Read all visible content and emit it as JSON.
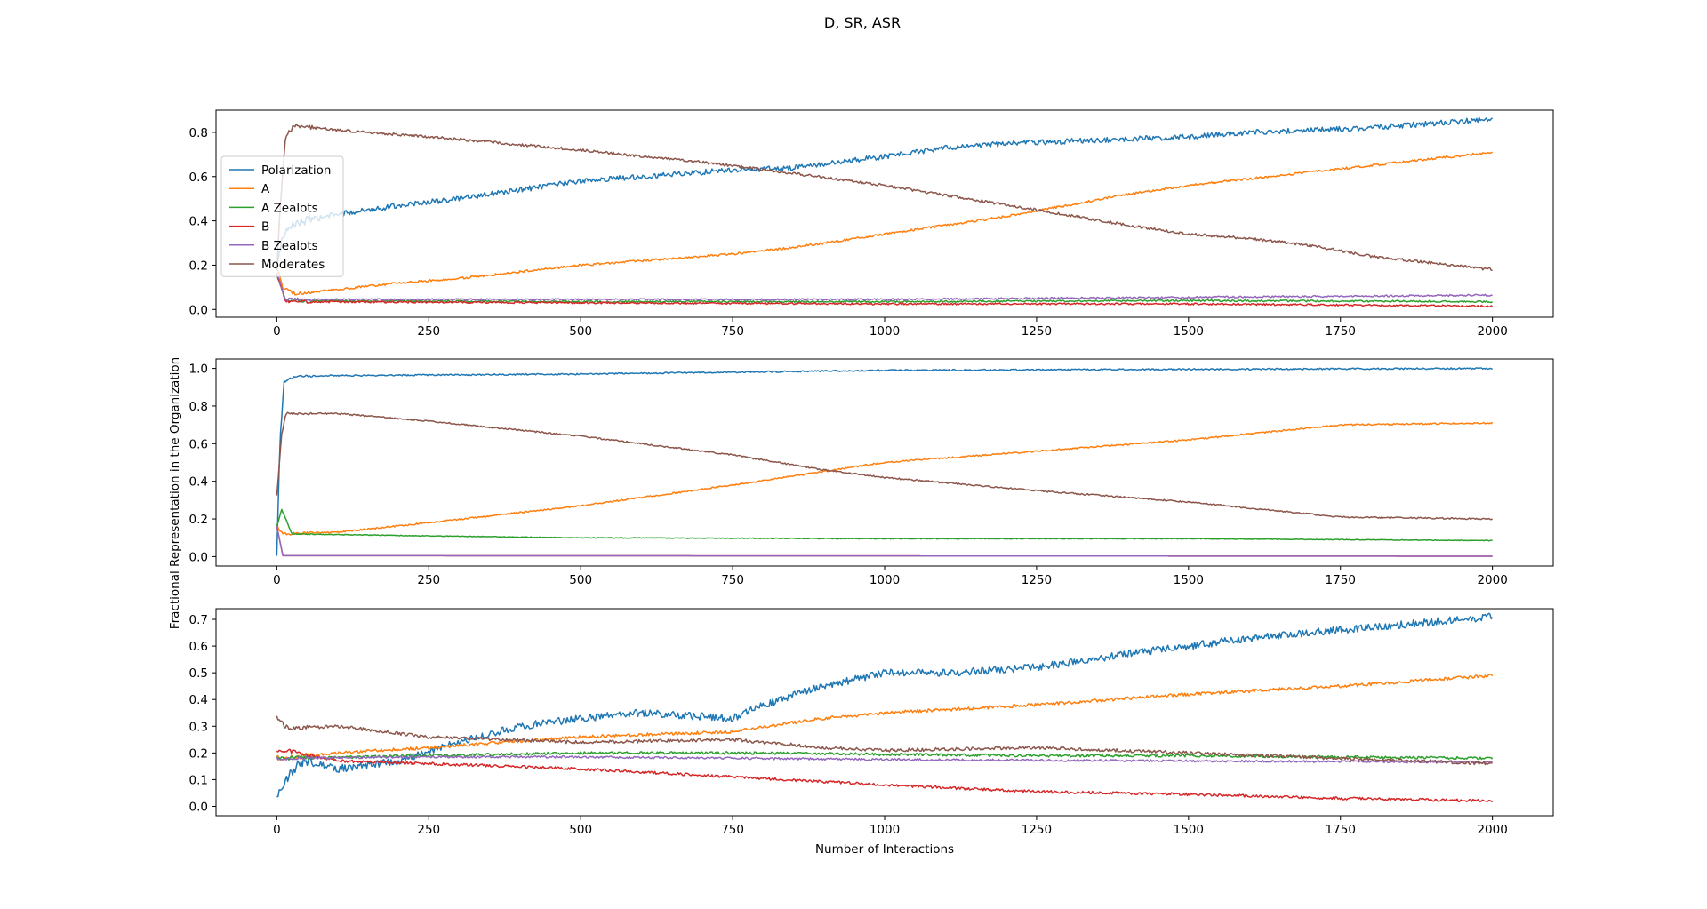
{
  "figure": {
    "title": "D, SR, ASR",
    "xlabel": "Number of Interactions",
    "ylabel": "Fractional Representation in the Organization"
  },
  "colors": {
    "Polarization": "#1f77b4",
    "A": "#ff7f0e",
    "A Zealots": "#2ca02c",
    "B": "#d62728",
    "B Zealots": "#9467bd",
    "Moderates": "#8c564b"
  },
  "chart_data": [
    {
      "type": "line",
      "xlim": [
        -100,
        2100
      ],
      "ylim": [
        -0.035,
        0.9
      ],
      "xticks": [
        0,
        250,
        500,
        750,
        1000,
        1250,
        1500,
        1750,
        2000
      ],
      "yticks": [
        0.0,
        0.2,
        0.4,
        0.6,
        0.8
      ],
      "ytick_labels": [
        "0.0",
        "0.2",
        "0.4",
        "0.6",
        "0.8"
      ],
      "legend": {
        "placement": "upper-left",
        "entries": [
          "Polarization",
          "A",
          "A Zealots",
          "B",
          "B Zealots",
          "Moderates"
        ]
      },
      "series": [
        {
          "name": "Polarization",
          "noise": 0.012,
          "points": [
            [
              0,
              0.2
            ],
            [
              10,
              0.33
            ],
            [
              30,
              0.39
            ],
            [
              100,
              0.43
            ],
            [
              200,
              0.47
            ],
            [
              300,
              0.5
            ],
            [
              400,
              0.54
            ],
            [
              500,
              0.58
            ],
            [
              600,
              0.6
            ],
            [
              750,
              0.63
            ],
            [
              850,
              0.64
            ],
            [
              1000,
              0.69
            ],
            [
              1100,
              0.73
            ],
            [
              1200,
              0.75
            ],
            [
              1300,
              0.76
            ],
            [
              1400,
              0.77
            ],
            [
              1500,
              0.78
            ],
            [
              1600,
              0.8
            ],
            [
              1700,
              0.81
            ],
            [
              1800,
              0.82
            ],
            [
              1900,
              0.84
            ],
            [
              2000,
              0.86
            ]
          ]
        },
        {
          "name": "A",
          "noise": 0.005,
          "points": [
            [
              0,
              0.19
            ],
            [
              10,
              0.1
            ],
            [
              30,
              0.07
            ],
            [
              100,
              0.09
            ],
            [
              200,
              0.12
            ],
            [
              300,
              0.14
            ],
            [
              400,
              0.17
            ],
            [
              500,
              0.2
            ],
            [
              600,
              0.22
            ],
            [
              750,
              0.25
            ],
            [
              850,
              0.28
            ],
            [
              1000,
              0.34
            ],
            [
              1100,
              0.38
            ],
            [
              1200,
              0.42
            ],
            [
              1300,
              0.47
            ],
            [
              1400,
              0.52
            ],
            [
              1500,
              0.56
            ],
            [
              1600,
              0.59
            ],
            [
              1700,
              0.62
            ],
            [
              1800,
              0.65
            ],
            [
              1900,
              0.68
            ],
            [
              2000,
              0.71
            ]
          ]
        },
        {
          "name": "A Zealots",
          "noise": 0.004,
          "points": [
            [
              0,
              0.16
            ],
            [
              15,
              0.04
            ],
            [
              500,
              0.035
            ],
            [
              1000,
              0.035
            ],
            [
              1500,
              0.04
            ],
            [
              2000,
              0.035
            ]
          ]
        },
        {
          "name": "B",
          "noise": 0.004,
          "points": [
            [
              0,
              0.16
            ],
            [
              15,
              0.035
            ],
            [
              500,
              0.03
            ],
            [
              1000,
              0.025
            ],
            [
              1500,
              0.025
            ],
            [
              2000,
              0.015
            ]
          ]
        },
        {
          "name": "B Zealots",
          "noise": 0.004,
          "points": [
            [
              0,
              0.16
            ],
            [
              15,
              0.045
            ],
            [
              500,
              0.045
            ],
            [
              1000,
              0.045
            ],
            [
              1500,
              0.055
            ],
            [
              2000,
              0.065
            ]
          ]
        },
        {
          "name": "Moderates",
          "noise": 0.006,
          "points": [
            [
              0,
              0.17
            ],
            [
              5,
              0.45
            ],
            [
              15,
              0.79
            ],
            [
              30,
              0.83
            ],
            [
              100,
              0.81
            ],
            [
              250,
              0.78
            ],
            [
              500,
              0.72
            ],
            [
              750,
              0.65
            ],
            [
              1000,
              0.56
            ],
            [
              1250,
              0.45
            ],
            [
              1400,
              0.38
            ],
            [
              1500,
              0.34
            ],
            [
              1600,
              0.32
            ],
            [
              1700,
              0.29
            ],
            [
              1800,
              0.24
            ],
            [
              1900,
              0.21
            ],
            [
              2000,
              0.18
            ]
          ]
        }
      ]
    },
    {
      "type": "line",
      "xlim": [
        -100,
        2100
      ],
      "ylim": [
        -0.05,
        1.05
      ],
      "xticks": [
        0,
        250,
        500,
        750,
        1000,
        1250,
        1500,
        1750,
        2000
      ],
      "yticks": [
        0.0,
        0.2,
        0.4,
        0.6,
        0.8,
        1.0
      ],
      "ytick_labels": [
        "0.0",
        "0.2",
        "0.4",
        "0.6",
        "0.8",
        "1.0"
      ],
      "series": [
        {
          "name": "Polarization",
          "noise": 0.004,
          "points": [
            [
              0,
              0.0
            ],
            [
              5,
              0.6
            ],
            [
              12,
              0.93
            ],
            [
              30,
              0.96
            ],
            [
              250,
              0.965
            ],
            [
              500,
              0.97
            ],
            [
              750,
              0.98
            ],
            [
              1000,
              0.99
            ],
            [
              1500,
              0.995
            ],
            [
              2000,
              1.0
            ]
          ]
        },
        {
          "name": "A",
          "noise": 0.004,
          "points": [
            [
              0,
              0.16
            ],
            [
              10,
              0.12
            ],
            [
              100,
              0.13
            ],
            [
              250,
              0.18
            ],
            [
              500,
              0.27
            ],
            [
              750,
              0.38
            ],
            [
              1000,
              0.5
            ],
            [
              1250,
              0.56
            ],
            [
              1500,
              0.62
            ],
            [
              1750,
              0.7
            ],
            [
              2000,
              0.71
            ]
          ]
        },
        {
          "name": "A Zealots",
          "noise": 0.002,
          "points": [
            [
              0,
              0.16
            ],
            [
              8,
              0.25
            ],
            [
              25,
              0.12
            ],
            [
              250,
              0.11
            ],
            [
              500,
              0.1
            ],
            [
              1000,
              0.095
            ],
            [
              1500,
              0.095
            ],
            [
              2000,
              0.085
            ]
          ]
        },
        {
          "name": "B",
          "noise": 0.0,
          "points": [
            [
              0,
              0.16
            ],
            [
              10,
              0.005
            ],
            [
              2000,
              0.002
            ]
          ]
        },
        {
          "name": "B Zealots",
          "noise": 0.0,
          "points": [
            [
              0,
              0.16
            ],
            [
              10,
              0.005
            ],
            [
              2000,
              0.002
            ]
          ]
        },
        {
          "name": "Moderates",
          "noise": 0.004,
          "points": [
            [
              0,
              0.32
            ],
            [
              8,
              0.65
            ],
            [
              15,
              0.76
            ],
            [
              100,
              0.76
            ],
            [
              250,
              0.72
            ],
            [
              500,
              0.64
            ],
            [
              750,
              0.54
            ],
            [
              900,
              0.46
            ],
            [
              1000,
              0.42
            ],
            [
              1250,
              0.35
            ],
            [
              1500,
              0.29
            ],
            [
              1750,
              0.21
            ],
            [
              2000,
              0.2
            ]
          ]
        }
      ]
    },
    {
      "type": "line",
      "xlim": [
        -100,
        2100
      ],
      "ylim": [
        -0.035,
        0.74
      ],
      "xticks": [
        0,
        250,
        500,
        750,
        1000,
        1250,
        1500,
        1750,
        2000
      ],
      "yticks": [
        0.0,
        0.1,
        0.2,
        0.3,
        0.4,
        0.5,
        0.6,
        0.7
      ],
      "ytick_labels": [
        "0.0",
        "0.1",
        "0.2",
        "0.3",
        "0.4",
        "0.5",
        "0.6",
        "0.7"
      ],
      "series": [
        {
          "name": "Polarization",
          "noise": 0.014,
          "points": [
            [
              0,
              0.02
            ],
            [
              15,
              0.1
            ],
            [
              40,
              0.17
            ],
            [
              100,
              0.14
            ],
            [
              200,
              0.17
            ],
            [
              300,
              0.24
            ],
            [
              400,
              0.3
            ],
            [
              500,
              0.33
            ],
            [
              600,
              0.35
            ],
            [
              750,
              0.33
            ],
            [
              800,
              0.38
            ],
            [
              900,
              0.45
            ],
            [
              1000,
              0.5
            ],
            [
              1100,
              0.5
            ],
            [
              1250,
              0.52
            ],
            [
              1400,
              0.57
            ],
            [
              1500,
              0.6
            ],
            [
              1600,
              0.63
            ],
            [
              1700,
              0.65
            ],
            [
              1800,
              0.67
            ],
            [
              1900,
              0.69
            ],
            [
              2000,
              0.71
            ]
          ]
        },
        {
          "name": "A",
          "noise": 0.006,
          "points": [
            [
              0,
              0.18
            ],
            [
              100,
              0.2
            ],
            [
              250,
              0.22
            ],
            [
              500,
              0.26
            ],
            [
              750,
              0.28
            ],
            [
              900,
              0.33
            ],
            [
              1000,
              0.35
            ],
            [
              1250,
              0.38
            ],
            [
              1500,
              0.42
            ],
            [
              1750,
              0.45
            ],
            [
              2000,
              0.49
            ]
          ]
        },
        {
          "name": "A Zealots",
          "noise": 0.005,
          "points": [
            [
              0,
              0.18
            ],
            [
              250,
              0.19
            ],
            [
              500,
              0.2
            ],
            [
              750,
              0.2
            ],
            [
              1000,
              0.195
            ],
            [
              1250,
              0.19
            ],
            [
              1500,
              0.19
            ],
            [
              2000,
              0.18
            ]
          ]
        },
        {
          "name": "B",
          "noise": 0.005,
          "points": [
            [
              0,
              0.2
            ],
            [
              15,
              0.21
            ],
            [
              100,
              0.17
            ],
            [
              250,
              0.16
            ],
            [
              500,
              0.14
            ],
            [
              750,
              0.11
            ],
            [
              1000,
              0.08
            ],
            [
              1250,
              0.055
            ],
            [
              1500,
              0.045
            ],
            [
              1750,
              0.03
            ],
            [
              2000,
              0.02
            ]
          ]
        },
        {
          "name": "B Zealots",
          "noise": 0.004,
          "points": [
            [
              0,
              0.18
            ],
            [
              250,
              0.185
            ],
            [
              500,
              0.185
            ],
            [
              1000,
              0.175
            ],
            [
              1500,
              0.17
            ],
            [
              2000,
              0.165
            ]
          ]
        },
        {
          "name": "Moderates",
          "noise": 0.006,
          "points": [
            [
              0,
              0.33
            ],
            [
              20,
              0.29
            ],
            [
              100,
              0.3
            ],
            [
              250,
              0.26
            ],
            [
              500,
              0.24
            ],
            [
              750,
              0.25
            ],
            [
              900,
              0.22
            ],
            [
              1000,
              0.21
            ],
            [
              1250,
              0.22
            ],
            [
              1500,
              0.2
            ],
            [
              1750,
              0.18
            ],
            [
              2000,
              0.16
            ]
          ]
        }
      ]
    }
  ]
}
